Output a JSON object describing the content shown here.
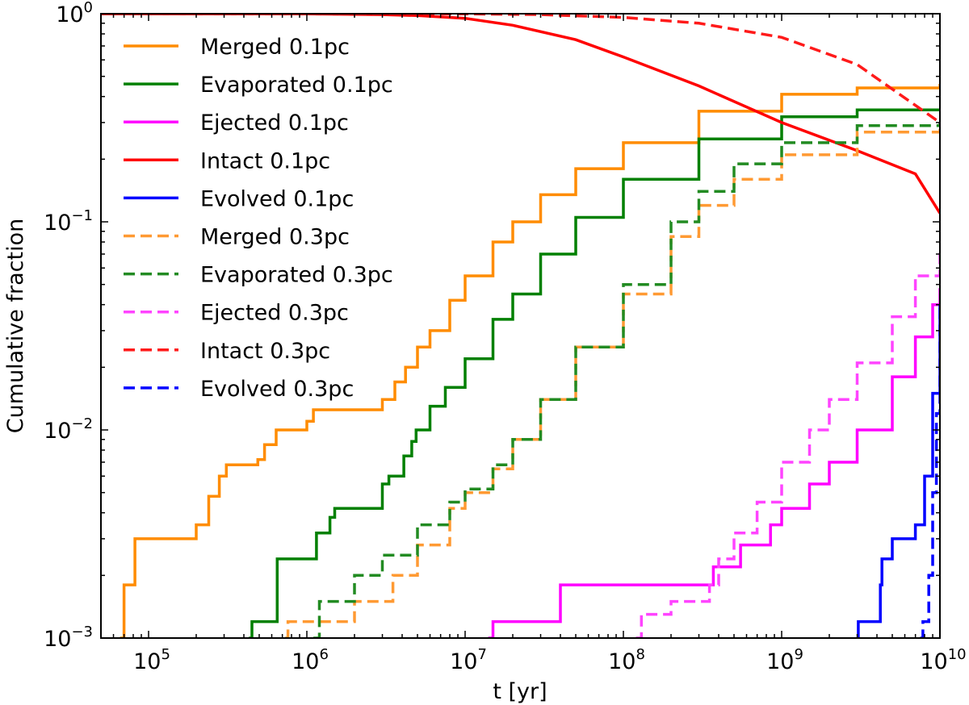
{
  "chart_data": {
    "type": "line",
    "xscale": "log",
    "yscale": "log",
    "xlabel": "t [yr]",
    "ylabel": "Cumulative fraction",
    "xlim": [
      50000,
      10000000000
    ],
    "ylim": [
      0.001,
      1
    ],
    "grid": false,
    "legend_position": "top-left",
    "x_ticks": [
      {
        "value": 100000,
        "base": "10",
        "exp": "5"
      },
      {
        "value": 1000000,
        "base": "10",
        "exp": "6"
      },
      {
        "value": 10000000,
        "base": "10",
        "exp": "7"
      },
      {
        "value": 100000000,
        "base": "10",
        "exp": "8"
      },
      {
        "value": 1000000000,
        "base": "10",
        "exp": "9"
      },
      {
        "value": 10000000000,
        "base": "10",
        "exp": "10"
      }
    ],
    "y_ticks": [
      {
        "value": 0.001,
        "base": "10",
        "exp": "−3"
      },
      {
        "value": 0.01,
        "base": "10",
        "exp": "−2"
      },
      {
        "value": 0.1,
        "base": "10",
        "exp": "−1"
      },
      {
        "value": 1,
        "base": "10",
        "exp": "0"
      }
    ],
    "series": [
      {
        "name": "Merged 0.1pc",
        "color": "#ff8c00",
        "dash": "solid",
        "step": true,
        "points": [
          [
            66000,
            0.001
          ],
          [
            70000,
            0.0018
          ],
          [
            82000,
            0.003
          ],
          [
            200000,
            0.0035
          ],
          [
            240000,
            0.0048
          ],
          [
            280000,
            0.006
          ],
          [
            310000,
            0.0068
          ],
          [
            490000,
            0.0072
          ],
          [
            540000,
            0.0085
          ],
          [
            640000,
            0.01
          ],
          [
            1000000,
            0.011
          ],
          [
            1100000,
            0.0125
          ],
          [
            3000000,
            0.014
          ],
          [
            3600000,
            0.017
          ],
          [
            4200000,
            0.02
          ],
          [
            5000000,
            0.025
          ],
          [
            6000000,
            0.03
          ],
          [
            8000000,
            0.042
          ],
          [
            10000000,
            0.055
          ],
          [
            15000000,
            0.08
          ],
          [
            20000000,
            0.1
          ],
          [
            30000000,
            0.135
          ],
          [
            50000000,
            0.18
          ],
          [
            100000000,
            0.24
          ],
          [
            300000000,
            0.34
          ],
          [
            1000000000,
            0.41
          ],
          [
            3000000000,
            0.44
          ],
          [
            10000000000,
            0.46
          ]
        ]
      },
      {
        "name": "Evaporated 0.1pc",
        "color": "#008000",
        "dash": "solid",
        "step": true,
        "points": [
          [
            430000,
            0.001
          ],
          [
            450000,
            0.0012
          ],
          [
            650000,
            0.0024
          ],
          [
            1150000,
            0.0032
          ],
          [
            1400000,
            0.0038
          ],
          [
            1500000,
            0.0042
          ],
          [
            3000000,
            0.0055
          ],
          [
            3300000,
            0.006
          ],
          [
            4100000,
            0.0075
          ],
          [
            4600000,
            0.0088
          ],
          [
            4900000,
            0.01
          ],
          [
            6000000,
            0.013
          ],
          [
            7500000,
            0.016
          ],
          [
            10000000,
            0.022
          ],
          [
            15000000,
            0.034
          ],
          [
            20000000,
            0.045
          ],
          [
            30000000,
            0.07
          ],
          [
            50000000,
            0.105
          ],
          [
            100000000,
            0.16
          ],
          [
            300000000,
            0.25
          ],
          [
            1000000000,
            0.32
          ],
          [
            3000000000,
            0.345
          ],
          [
            10000000000,
            0.35
          ]
        ]
      },
      {
        "name": "Ejected 0.1pc",
        "color": "#ff00ff",
        "dash": "solid",
        "step": true,
        "points": [
          [
            14000000,
            0.001
          ],
          [
            15000000,
            0.0012
          ],
          [
            40000000,
            0.0018
          ],
          [
            370000000,
            0.0022
          ],
          [
            550000000,
            0.0028
          ],
          [
            850000000,
            0.0035
          ],
          [
            1000000000,
            0.0042
          ],
          [
            1500000000,
            0.0055
          ],
          [
            2000000000,
            0.007
          ],
          [
            3000000000,
            0.01
          ],
          [
            5000000000,
            0.018
          ],
          [
            7000000000,
            0.028
          ],
          [
            9000000000,
            0.04
          ],
          [
            10000000000,
            0.048
          ]
        ]
      },
      {
        "name": "Intact 0.1pc",
        "color": "#ff0000",
        "dash": "solid",
        "step": false,
        "points": [
          [
            50000,
            0.999
          ],
          [
            1000000,
            0.997
          ],
          [
            3000000,
            0.99
          ],
          [
            5000000,
            0.98
          ],
          [
            10000000,
            0.95
          ],
          [
            20000000,
            0.88
          ],
          [
            50000000,
            0.75
          ],
          [
            100000000,
            0.62
          ],
          [
            300000000,
            0.45
          ],
          [
            1000000000,
            0.3
          ],
          [
            3000000000,
            0.22
          ],
          [
            7000000000,
            0.17
          ],
          [
            10000000000,
            0.11
          ]
        ]
      },
      {
        "name": "Evolved 0.1pc",
        "color": "#0000ff",
        "dash": "solid",
        "step": true,
        "points": [
          [
            3000000000,
            0.001
          ],
          [
            3050000000,
            0.0012
          ],
          [
            4200000000,
            0.0018
          ],
          [
            4300000000,
            0.0024
          ],
          [
            5000000000,
            0.003
          ],
          [
            7000000000,
            0.0035
          ],
          [
            8000000000,
            0.006
          ],
          [
            9000000000,
            0.015
          ],
          [
            10000000000,
            0.04
          ]
        ]
      },
      {
        "name": "Merged 0.3pc",
        "color": "#ff9a33",
        "dash": "dashed",
        "step": true,
        "points": [
          [
            730000,
            0.001
          ],
          [
            760000,
            0.0012
          ],
          [
            2000000,
            0.0015
          ],
          [
            3500000,
            0.002
          ],
          [
            5000000,
            0.0028
          ],
          [
            8000000,
            0.0042
          ],
          [
            10000000,
            0.005
          ],
          [
            15000000,
            0.0065
          ],
          [
            20000000,
            0.009
          ],
          [
            30000000,
            0.014
          ],
          [
            50000000,
            0.025
          ],
          [
            100000000,
            0.045
          ],
          [
            200000000,
            0.085
          ],
          [
            300000000,
            0.12
          ],
          [
            500000000,
            0.16
          ],
          [
            1000000000,
            0.21
          ],
          [
            3000000000,
            0.27
          ],
          [
            10000000000,
            0.29
          ]
        ]
      },
      {
        "name": "Evaporated 0.3pc",
        "color": "#228b22",
        "dash": "dashed",
        "step": true,
        "points": [
          [
            1100000,
            0.001
          ],
          [
            1200000,
            0.0015
          ],
          [
            2000000,
            0.002
          ],
          [
            3000000,
            0.0025
          ],
          [
            5000000,
            0.0035
          ],
          [
            8000000,
            0.0045
          ],
          [
            10000000,
            0.0052
          ],
          [
            15000000,
            0.0068
          ],
          [
            20000000,
            0.009
          ],
          [
            30000000,
            0.014
          ],
          [
            50000000,
            0.025
          ],
          [
            100000000,
            0.05
          ],
          [
            200000000,
            0.1
          ],
          [
            300000000,
            0.14
          ],
          [
            500000000,
            0.19
          ],
          [
            1000000000,
            0.24
          ],
          [
            3000000000,
            0.29
          ],
          [
            10000000000,
            0.3
          ]
        ]
      },
      {
        "name": "Ejected 0.3pc",
        "color": "#ff44ff",
        "dash": "dashed",
        "step": true,
        "points": [
          [
            120000000,
            0.001
          ],
          [
            130000000,
            0.0013
          ],
          [
            200000000,
            0.0015
          ],
          [
            350000000,
            0.0018
          ],
          [
            400000000,
            0.0024
          ],
          [
            500000000,
            0.0032
          ],
          [
            700000000,
            0.0045
          ],
          [
            1000000000,
            0.007
          ],
          [
            1500000000,
            0.01
          ],
          [
            2000000000,
            0.014
          ],
          [
            3000000000,
            0.021
          ],
          [
            5000000000,
            0.035
          ],
          [
            7000000000,
            0.055
          ],
          [
            10000000000,
            0.075
          ]
        ]
      },
      {
        "name": "Intact 0.3pc",
        "color": "#ff1a1a",
        "dash": "dashed",
        "step": false,
        "points": [
          [
            50000,
            1.0
          ],
          [
            10000000,
            0.998
          ],
          [
            30000000,
            0.99
          ],
          [
            100000000,
            0.96
          ],
          [
            300000000,
            0.9
          ],
          [
            1000000000,
            0.77
          ],
          [
            3000000000,
            0.57
          ],
          [
            10000000000,
            0.3
          ]
        ]
      },
      {
        "name": "Evolved 0.3pc",
        "color": "#0000ff",
        "dash": "dashed",
        "step": true,
        "points": [
          [
            7500000000,
            0.001
          ],
          [
            7800000000,
            0.0012
          ],
          [
            8500000000,
            0.002
          ],
          [
            9000000000,
            0.005
          ],
          [
            9500000000,
            0.012
          ],
          [
            10000000000,
            0.04
          ]
        ]
      }
    ]
  }
}
